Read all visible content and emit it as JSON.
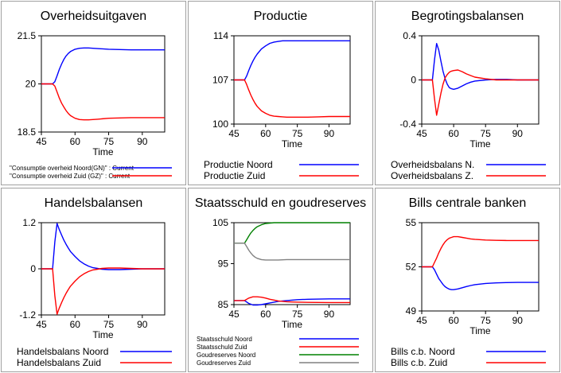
{
  "chart_data": [
    {
      "type": "line",
      "title": "Overheidsuitgaven",
      "xlabel": "Time",
      "x_ticks": [
        45,
        60,
        75,
        90
      ],
      "xlim": [
        45,
        100
      ],
      "y_ticks": [
        "21.5",
        "20",
        "18.5"
      ],
      "ylim": [
        18.5,
        21.5
      ],
      "legend_size": "small",
      "series": [
        {
          "name": "\"Consumptie overheid Noord(GN)\" : Current",
          "color": "#0000ff",
          "x": [
            45,
            50,
            51,
            52,
            53,
            54,
            55,
            56,
            57,
            58,
            60,
            62,
            64,
            66,
            68,
            70,
            75,
            80,
            85,
            90,
            95,
            100
          ],
          "y": [
            20,
            20,
            20.07,
            20.25,
            20.45,
            20.62,
            20.76,
            20.87,
            20.95,
            21.01,
            21.08,
            21.11,
            21.12,
            21.12,
            21.11,
            21.1,
            21.08,
            21.07,
            21.06,
            21.06,
            21.06,
            21.06
          ]
        },
        {
          "name": "\"Consumptie overheid Zuid (GZ)\" : Current",
          "color": "#ff0000",
          "x": [
            45,
            50,
            51,
            52,
            53,
            54,
            55,
            56,
            57,
            58,
            60,
            62,
            64,
            66,
            68,
            70,
            75,
            80,
            85,
            90,
            95,
            100
          ],
          "y": [
            20,
            20,
            19.93,
            19.75,
            19.56,
            19.4,
            19.28,
            19.17,
            19.08,
            19.01,
            18.93,
            18.89,
            18.88,
            18.88,
            18.89,
            18.9,
            18.93,
            18.94,
            18.95,
            18.95,
            18.95,
            18.95
          ]
        }
      ]
    },
    {
      "type": "line",
      "title": "Productie",
      "xlabel": "Time",
      "x_ticks": [
        45,
        60,
        75,
        90
      ],
      "xlim": [
        45,
        100
      ],
      "y_ticks": [
        "114",
        "107",
        "100"
      ],
      "ylim": [
        100,
        114
      ],
      "legend_size": "normal",
      "series": [
        {
          "name": "Productie Noord",
          "color": "#0000ff",
          "x": [
            45,
            50,
            51,
            52,
            53,
            54,
            55,
            56,
            58,
            60,
            62,
            64,
            66,
            68,
            70,
            75,
            80,
            85,
            90,
            95,
            100
          ],
          "y": [
            107,
            107,
            107.6,
            108.5,
            109.3,
            110,
            110.6,
            111.1,
            111.9,
            112.4,
            112.8,
            113,
            113.1,
            113.2,
            113.2,
            113.2,
            113.2,
            113.2,
            113.2,
            113.2,
            113.2
          ]
        },
        {
          "name": "Productie Zuid",
          "color": "#ff0000",
          "x": [
            45,
            50,
            51,
            52,
            53,
            54,
            55,
            56,
            58,
            60,
            62,
            64,
            66,
            68,
            70,
            75,
            80,
            85,
            90,
            95,
            100
          ],
          "y": [
            107,
            107,
            106.3,
            105.4,
            104.6,
            103.9,
            103.3,
            102.8,
            102.1,
            101.7,
            101.4,
            101.25,
            101.2,
            101.15,
            101.1,
            101.1,
            101.1,
            101.15,
            101.2,
            101.2,
            101.2
          ]
        }
      ]
    },
    {
      "type": "line",
      "title": "Begrotingsbalansen",
      "xlabel": "Time",
      "x_ticks": [
        45,
        60,
        75,
        90
      ],
      "xlim": [
        45,
        100
      ],
      "y_ticks": [
        "0.4",
        "0",
        "-0.4"
      ],
      "ylim": [
        -0.4,
        0.4
      ],
      "legend_size": "normal",
      "series": [
        {
          "name": "Overheidsbalans N.",
          "color": "#0000ff",
          "x": [
            45,
            50,
            51,
            52,
            53,
            54,
            55,
            56,
            57,
            58,
            59,
            60,
            62,
            64,
            66,
            68,
            70,
            75,
            80,
            85,
            90,
            95,
            100
          ],
          "y": [
            0,
            0,
            0.18,
            0.33,
            0.27,
            0.17,
            0.08,
            0.01,
            -0.04,
            -0.07,
            -0.08,
            -0.085,
            -0.075,
            -0.055,
            -0.035,
            -0.02,
            -0.01,
            0,
            0.005,
            0.005,
            0,
            0,
            0
          ]
        },
        {
          "name": "Overheidsbalans Z.",
          "color": "#ff0000",
          "x": [
            45,
            50,
            51,
            52,
            53,
            54,
            55,
            56,
            57,
            58,
            59,
            60,
            62,
            64,
            66,
            68,
            70,
            75,
            80,
            85,
            90,
            95,
            100
          ],
          "y": [
            0,
            0,
            -0.17,
            -0.32,
            -0.22,
            -0.12,
            -0.04,
            0.02,
            0.05,
            0.07,
            0.08,
            0.085,
            0.09,
            0.075,
            0.055,
            0.04,
            0.025,
            0.01,
            0,
            0,
            0,
            0,
            0
          ]
        }
      ]
    },
    {
      "type": "line",
      "title": "Handelsbalansen",
      "xlabel": "Time",
      "x_ticks": [
        45,
        60,
        75,
        90
      ],
      "xlim": [
        45,
        100
      ],
      "y_ticks": [
        "1.2",
        "0",
        "-1.2"
      ],
      "ylim": [
        -1.2,
        1.2
      ],
      "legend_size": "normal",
      "series": [
        {
          "name": "Handelsbalans Noord",
          "color": "#0000ff",
          "x": [
            45,
            50,
            51,
            52,
            53,
            54,
            55,
            56,
            57,
            58,
            60,
            62,
            64,
            66,
            68,
            70,
            72,
            75,
            80,
            85,
            90,
            95,
            100
          ],
          "y": [
            0,
            0,
            0.7,
            1.18,
            1.02,
            0.88,
            0.75,
            0.64,
            0.54,
            0.45,
            0.32,
            0.21,
            0.13,
            0.07,
            0.03,
            0.01,
            -0.01,
            -0.02,
            -0.02,
            -0.01,
            0,
            0,
            0
          ]
        },
        {
          "name": "Handelsbalans Zuid",
          "color": "#ff0000",
          "x": [
            45,
            50,
            51,
            52,
            53,
            54,
            55,
            56,
            57,
            58,
            60,
            62,
            64,
            66,
            68,
            70,
            72,
            75,
            80,
            85,
            90,
            95,
            100
          ],
          "y": [
            0,
            0,
            -0.7,
            -1.18,
            -1.02,
            -0.88,
            -0.75,
            -0.64,
            -0.54,
            -0.45,
            -0.32,
            -0.21,
            -0.13,
            -0.07,
            -0.03,
            -0.01,
            0.01,
            0.02,
            0.02,
            0.01,
            0,
            0,
            0
          ]
        }
      ]
    },
    {
      "type": "line",
      "title": "Staatsschuld en goudreserves",
      "xlabel": "Time",
      "x_ticks": [
        45,
        60,
        75,
        90
      ],
      "xlim": [
        45,
        100
      ],
      "y_ticks": [
        "105",
        "95",
        "85"
      ],
      "ylim": [
        85,
        105
      ],
      "legend_size": "small",
      "series": [
        {
          "name": "Staatsschuld Noord",
          "color": "#0000ff",
          "x": [
            45,
            50,
            52,
            54,
            56,
            58,
            60,
            62,
            64,
            66,
            68,
            70,
            75,
            80,
            90,
            100
          ],
          "y": [
            86,
            86,
            85.3,
            84.9,
            84.9,
            85,
            85.2,
            85.4,
            85.6,
            85.8,
            85.9,
            86,
            86.2,
            86.3,
            86.4,
            86.4
          ]
        },
        {
          "name": "Staatsschuld Zuid",
          "color": "#ff0000",
          "x": [
            45,
            50,
            52,
            54,
            56,
            58,
            60,
            62,
            64,
            66,
            68,
            70,
            75,
            80,
            90,
            100
          ],
          "y": [
            86,
            86,
            86.6,
            86.9,
            86.9,
            86.8,
            86.6,
            86.3,
            86.1,
            85.9,
            85.8,
            85.7,
            85.6,
            85.55,
            85.5,
            85.5
          ]
        },
        {
          "name": "Goudreserves Noord",
          "color": "#008000",
          "x": [
            45,
            50,
            51,
            52,
            53,
            54,
            55,
            56,
            58,
            60,
            62,
            64,
            66,
            70,
            75,
            80,
            90,
            100
          ],
          "y": [
            100,
            100,
            100.8,
            101.7,
            102.5,
            103.1,
            103.6,
            104,
            104.5,
            104.8,
            104.9,
            105,
            105,
            105,
            105,
            105,
            105,
            105
          ]
        },
        {
          "name": "Goudreserves Zuid",
          "color": "#808080",
          "x": [
            45,
            50,
            51,
            52,
            53,
            54,
            55,
            56,
            58,
            60,
            62,
            64,
            66,
            70,
            75,
            80,
            90,
            100
          ],
          "y": [
            100,
            100,
            99.2,
            98.3,
            97.6,
            97,
            96.6,
            96.3,
            96,
            95.9,
            95.9,
            95.9,
            95.9,
            96,
            96,
            96,
            96,
            96
          ]
        }
      ]
    },
    {
      "type": "line",
      "title": "Bills centrale banken",
      "xlabel": "Time",
      "x_ticks": [
        45,
        60,
        75,
        90
      ],
      "xlim": [
        45,
        100
      ],
      "y_ticks": [
        "55",
        "52",
        "49"
      ],
      "ylim": [
        49,
        55
      ],
      "legend_size": "normal",
      "series": [
        {
          "name": "Bills c.b. Noord",
          "color": "#0000ff",
          "x": [
            45,
            50,
            51,
            52,
            53,
            54,
            55,
            56,
            57,
            58,
            59,
            60,
            62,
            64,
            66,
            68,
            70,
            75,
            80,
            85,
            90,
            95,
            100
          ],
          "y": [
            52,
            52,
            51.8,
            51.5,
            51.2,
            51,
            50.8,
            50.65,
            50.55,
            50.48,
            50.45,
            50.45,
            50.5,
            50.58,
            50.66,
            50.73,
            50.79,
            50.87,
            50.91,
            50.93,
            50.94,
            50.94,
            50.94
          ]
        },
        {
          "name": "Bills c.b. Zuid",
          "color": "#ff0000",
          "x": [
            45,
            50,
            51,
            52,
            53,
            54,
            55,
            56,
            57,
            58,
            59,
            60,
            62,
            64,
            66,
            68,
            70,
            75,
            80,
            85,
            90,
            95,
            100
          ],
          "y": [
            52,
            52,
            52.3,
            52.6,
            52.95,
            53.25,
            53.5,
            53.7,
            53.85,
            53.95,
            54,
            54.05,
            54.05,
            54,
            53.95,
            53.9,
            53.87,
            53.82,
            53.8,
            53.79,
            53.79,
            53.79,
            53.79
          ]
        }
      ]
    }
  ]
}
